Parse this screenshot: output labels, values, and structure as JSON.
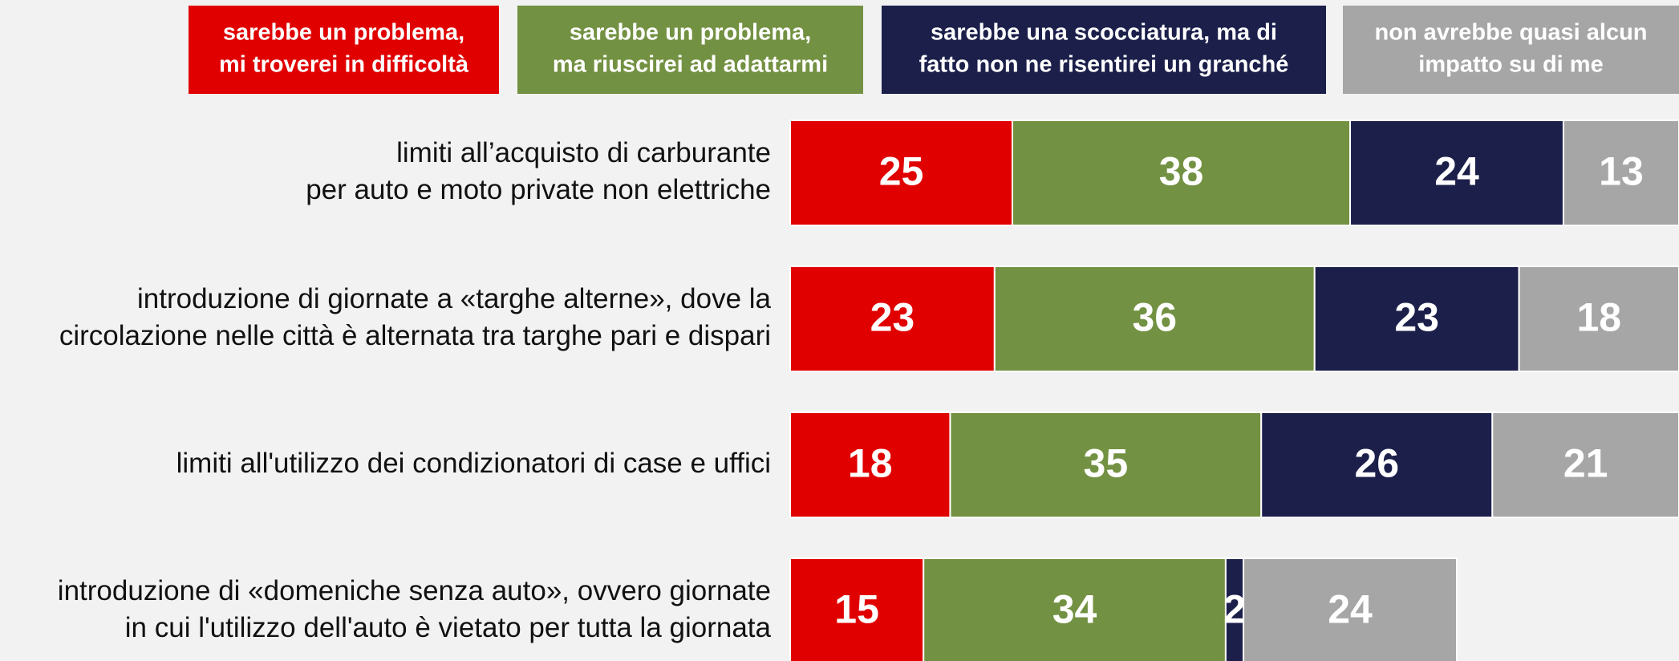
{
  "chart_data": {
    "type": "stacked_barh",
    "categories": [
      "limiti all’acquisto di carburante\nper auto e moto private non elettriche",
      "introduzione di giornate a «targhe alterne», dove la\ncircolazione nelle città è alternata tra targhe pari e dispari",
      "limiti all'utilizzo dei condizionatori di case e uffici",
      "introduzione di «domeniche senza auto», ovvero giornate\nin cui l'utilizzo dell'auto è vietato per tutta la giornata"
    ],
    "series": [
      {
        "name": "sarebbe un problema,\nmi troverei in difficoltà",
        "color": "#e00000",
        "values": [
          25,
          23,
          18,
          15
        ]
      },
      {
        "name": "sarebbe un problema,\nma riuscirei ad adattarmi",
        "color": "#739142",
        "values": [
          38,
          36,
          35,
          34
        ]
      },
      {
        "name": "sarebbe una scocciatura, ma di\nfatto non ne risentirei un granché",
        "color": "#1b1f4a",
        "values": [
          24,
          23,
          26,
          2
        ]
      },
      {
        "name": "non avrebbe quasi alcun\nimpatto su di me",
        "color": "#a6a6a6",
        "values": [
          13,
          18,
          21,
          24
        ]
      }
    ],
    "xlim": [
      0,
      100
    ]
  }
}
